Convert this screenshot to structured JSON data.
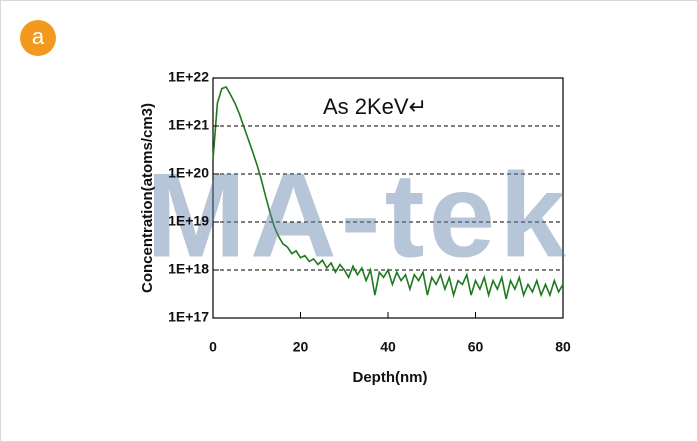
{
  "panel_label": "a",
  "watermark": "MA-tek",
  "chart_data": {
    "type": "line",
    "annotation": "As 2KeV↵",
    "x_label": "Depth(nm)",
    "y_label": "Concentration(atoms/cm3)",
    "color": "#1d7a1d",
    "log_y": true,
    "grid": true,
    "x": [
      0,
      1,
      2,
      3,
      4,
      5,
      6,
      7,
      8,
      9,
      10,
      11,
      12,
      13,
      14,
      15,
      16,
      17,
      18,
      19,
      20,
      21,
      22,
      23,
      24,
      25,
      26,
      27,
      28,
      29,
      30,
      31,
      32,
      33,
      34,
      35,
      36,
      37,
      38,
      39,
      40,
      41,
      42,
      43,
      44,
      45,
      46,
      47,
      48,
      49,
      50,
      51,
      52,
      53,
      54,
      55,
      56,
      57,
      58,
      59,
      60,
      61,
      62,
      63,
      64,
      65,
      66,
      67,
      68,
      69,
      70,
      71,
      72,
      73,
      74,
      75,
      76,
      77,
      78,
      79,
      80
    ],
    "values": [
      2e+20,
      3e+21,
      6e+21,
      6.5e+21,
      4.5e+21,
      3e+21,
      1.8e+21,
      1e+21,
      5.5e+20,
      3e+20,
      1.6e+20,
      8e+19,
      3.5e+19,
      1.6e+19,
      8e+18,
      5e+18,
      3.5e+18,
      3e+18,
      2.2e+18,
      2.5e+18,
      1.8e+18,
      2e+18,
      1.5e+18,
      1.7e+18,
      1.3e+18,
      1.6e+18,
      1.1e+18,
      1.4e+18,
      9e+17,
      1.3e+18,
      1e+18,
      7e+17,
      1.2e+18,
      8e+17,
      1.1e+18,
      6e+17,
      1e+18,
      3e+17,
      9e+17,
      7e+17,
      1e+18,
      5e+17,
      9e+17,
      6e+17,
      8e+17,
      4e+17,
      8e+17,
      6e+17,
      9e+17,
      3e+17,
      7e+17,
      5e+17,
      8e+17,
      4e+17,
      7e+17,
      3e+17,
      6e+17,
      5e+17,
      8e+17,
      3e+17,
      6e+17,
      4e+17,
      7e+17,
      3e+17,
      6e+17,
      4e+17,
      7e+17,
      2.5e+17,
      6e+17,
      4e+17,
      7e+17,
      3e+17,
      5e+17,
      3.5e+17,
      6e+17,
      3e+17,
      5e+17,
      3e+17,
      6e+17,
      3.5e+17,
      5e+17
    ],
    "xlim": [
      0,
      80
    ],
    "xticks": [
      0,
      20,
      40,
      60,
      80
    ],
    "ylim": [
      1e+17,
      1e+22
    ],
    "yticks": [
      {
        "value": 1e+17,
        "label": "1E+17"
      },
      {
        "value": 1e+18,
        "label": "1E+18"
      },
      {
        "value": 1e+19,
        "label": "1E+19"
      },
      {
        "value": 1e+20,
        "label": "1E+20"
      },
      {
        "value": 1e+21,
        "label": "1E+21"
      },
      {
        "value": 1e+22,
        "label": "1E+22"
      }
    ]
  }
}
